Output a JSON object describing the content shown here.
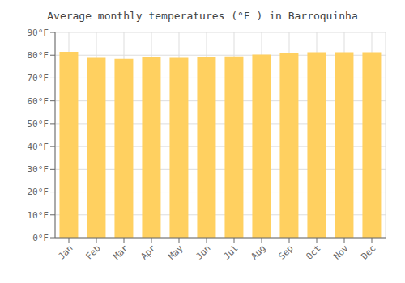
{
  "chart_data": {
    "type": "bar",
    "title": "Average monthly temperatures (°F ) in Barroquinha",
    "categories": [
      "Jan",
      "Feb",
      "Mar",
      "Apr",
      "May",
      "Jun",
      "Jul",
      "Aug",
      "Sep",
      "Oct",
      "Nov",
      "Dec"
    ],
    "values": [
      81.5,
      78.8,
      78.4,
      79.0,
      78.8,
      79.2,
      79.5,
      80.3,
      81.1,
      81.3,
      81.3,
      81.3
    ],
    "color": "#FFD060",
    "ylim": [
      0,
      90
    ],
    "yticks": [
      {
        "value": 0,
        "label": "0°F"
      },
      {
        "value": 10,
        "label": "10°F"
      },
      {
        "value": 20,
        "label": "20°F"
      },
      {
        "value": 30,
        "label": "30°F"
      },
      {
        "value": 40,
        "label": "40°F"
      },
      {
        "value": 50,
        "label": "50°F"
      },
      {
        "value": 60,
        "label": "60°F"
      },
      {
        "value": 70,
        "label": "70°F"
      },
      {
        "value": 80,
        "label": "80°F"
      },
      {
        "value": 90,
        "label": "90°F"
      }
    ],
    "grid": true
  }
}
